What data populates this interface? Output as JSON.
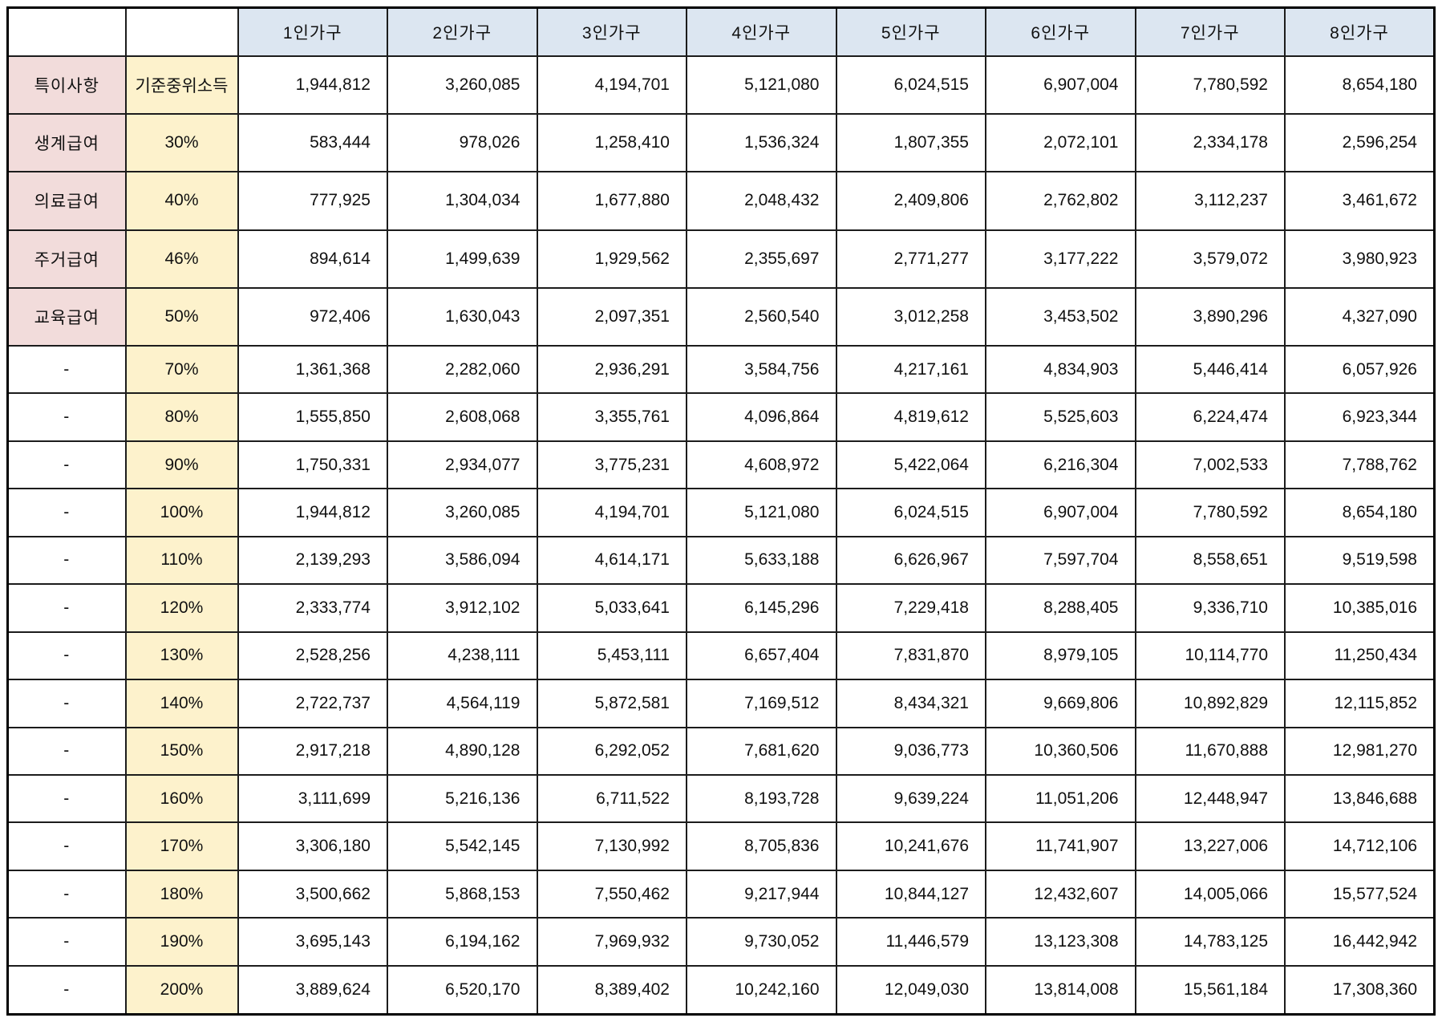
{
  "table": {
    "col_headers": [
      "1인가구",
      "2인가구",
      "3인가구",
      "4인가구",
      "5인가구",
      "6인가구",
      "7인가구",
      "8인가구"
    ],
    "corner_labels": [
      "",
      ""
    ],
    "rows": [
      {
        "category": "특이사항",
        "rate": "기준중위소득",
        "values": [
          "1,944,812",
          "3,260,085",
          "4,194,701",
          "5,121,080",
          "6,024,515",
          "6,907,004",
          "7,780,592",
          "8,654,180"
        ]
      },
      {
        "category": "생계급여",
        "rate": "30%",
        "values": [
          "583,444",
          "978,026",
          "1,258,410",
          "1,536,324",
          "1,807,355",
          "2,072,101",
          "2,334,178",
          "2,596,254"
        ]
      },
      {
        "category": "의료급여",
        "rate": "40%",
        "values": [
          "777,925",
          "1,304,034",
          "1,677,880",
          "2,048,432",
          "2,409,806",
          "2,762,802",
          "3,112,237",
          "3,461,672"
        ]
      },
      {
        "category": "주거급여",
        "rate": "46%",
        "values": [
          "894,614",
          "1,499,639",
          "1,929,562",
          "2,355,697",
          "2,771,277",
          "3,177,222",
          "3,579,072",
          "3,980,923"
        ]
      },
      {
        "category": "교육급여",
        "rate": "50%",
        "values": [
          "972,406",
          "1,630,043",
          "2,097,351",
          "2,560,540",
          "3,012,258",
          "3,453,502",
          "3,890,296",
          "4,327,090"
        ]
      },
      {
        "category": "-",
        "rate": "70%",
        "values": [
          "1,361,368",
          "2,282,060",
          "2,936,291",
          "3,584,756",
          "4,217,161",
          "4,834,903",
          "5,446,414",
          "6,057,926"
        ]
      },
      {
        "category": "-",
        "rate": "80%",
        "values": [
          "1,555,850",
          "2,608,068",
          "3,355,761",
          "4,096,864",
          "4,819,612",
          "5,525,603",
          "6,224,474",
          "6,923,344"
        ]
      },
      {
        "category": "-",
        "rate": "90%",
        "values": [
          "1,750,331",
          "2,934,077",
          "3,775,231",
          "4,608,972",
          "5,422,064",
          "6,216,304",
          "7,002,533",
          "7,788,762"
        ]
      },
      {
        "category": "-",
        "rate": "100%",
        "values": [
          "1,944,812",
          "3,260,085",
          "4,194,701",
          "5,121,080",
          "6,024,515",
          "6,907,004",
          "7,780,592",
          "8,654,180"
        ]
      },
      {
        "category": "-",
        "rate": "110%",
        "values": [
          "2,139,293",
          "3,586,094",
          "4,614,171",
          "5,633,188",
          "6,626,967",
          "7,597,704",
          "8,558,651",
          "9,519,598"
        ]
      },
      {
        "category": "-",
        "rate": "120%",
        "values": [
          "2,333,774",
          "3,912,102",
          "5,033,641",
          "6,145,296",
          "7,229,418",
          "8,288,405",
          "9,336,710",
          "10,385,016"
        ]
      },
      {
        "category": "-",
        "rate": "130%",
        "values": [
          "2,528,256",
          "4,238,111",
          "5,453,111",
          "6,657,404",
          "7,831,870",
          "8,979,105",
          "10,114,770",
          "11,250,434"
        ]
      },
      {
        "category": "-",
        "rate": "140%",
        "values": [
          "2,722,737",
          "4,564,119",
          "5,872,581",
          "7,169,512",
          "8,434,321",
          "9,669,806",
          "10,892,829",
          "12,115,852"
        ]
      },
      {
        "category": "-",
        "rate": "150%",
        "values": [
          "2,917,218",
          "4,890,128",
          "6,292,052",
          "7,681,620",
          "9,036,773",
          "10,360,506",
          "11,670,888",
          "12,981,270"
        ]
      },
      {
        "category": "-",
        "rate": "160%",
        "values": [
          "3,111,699",
          "5,216,136",
          "6,711,522",
          "8,193,728",
          "9,639,224",
          "11,051,206",
          "12,448,947",
          "13,846,688"
        ]
      },
      {
        "category": "-",
        "rate": "170%",
        "values": [
          "3,306,180",
          "5,542,145",
          "7,130,992",
          "8,705,836",
          "10,241,676",
          "11,741,907",
          "13,227,006",
          "14,712,106"
        ]
      },
      {
        "category": "-",
        "rate": "180%",
        "values": [
          "3,500,662",
          "5,868,153",
          "7,550,462",
          "9,217,944",
          "10,844,127",
          "12,432,607",
          "14,005,066",
          "15,577,524"
        ]
      },
      {
        "category": "-",
        "rate": "190%",
        "values": [
          "3,695,143",
          "6,194,162",
          "7,969,932",
          "9,730,052",
          "11,446,579",
          "13,123,308",
          "14,783,125",
          "16,442,942"
        ]
      },
      {
        "category": "-",
        "rate": "200%",
        "values": [
          "3,889,624",
          "6,520,170",
          "8,389,402",
          "10,242,160",
          "12,049,030",
          "13,814,008",
          "15,561,184",
          "17,308,360"
        ]
      }
    ],
    "named_categories": [
      "특이사항",
      "생계급여",
      "의료급여",
      "주거급여",
      "교육급여"
    ]
  },
  "colors": {
    "header_fill": "#dce6f1",
    "category_fill": "#f2dcdb",
    "rate_fill": "#fdf2cc",
    "border": "#1c1c1c",
    "outer_border": "#000000",
    "text": "#111111",
    "background": "#ffffff"
  }
}
